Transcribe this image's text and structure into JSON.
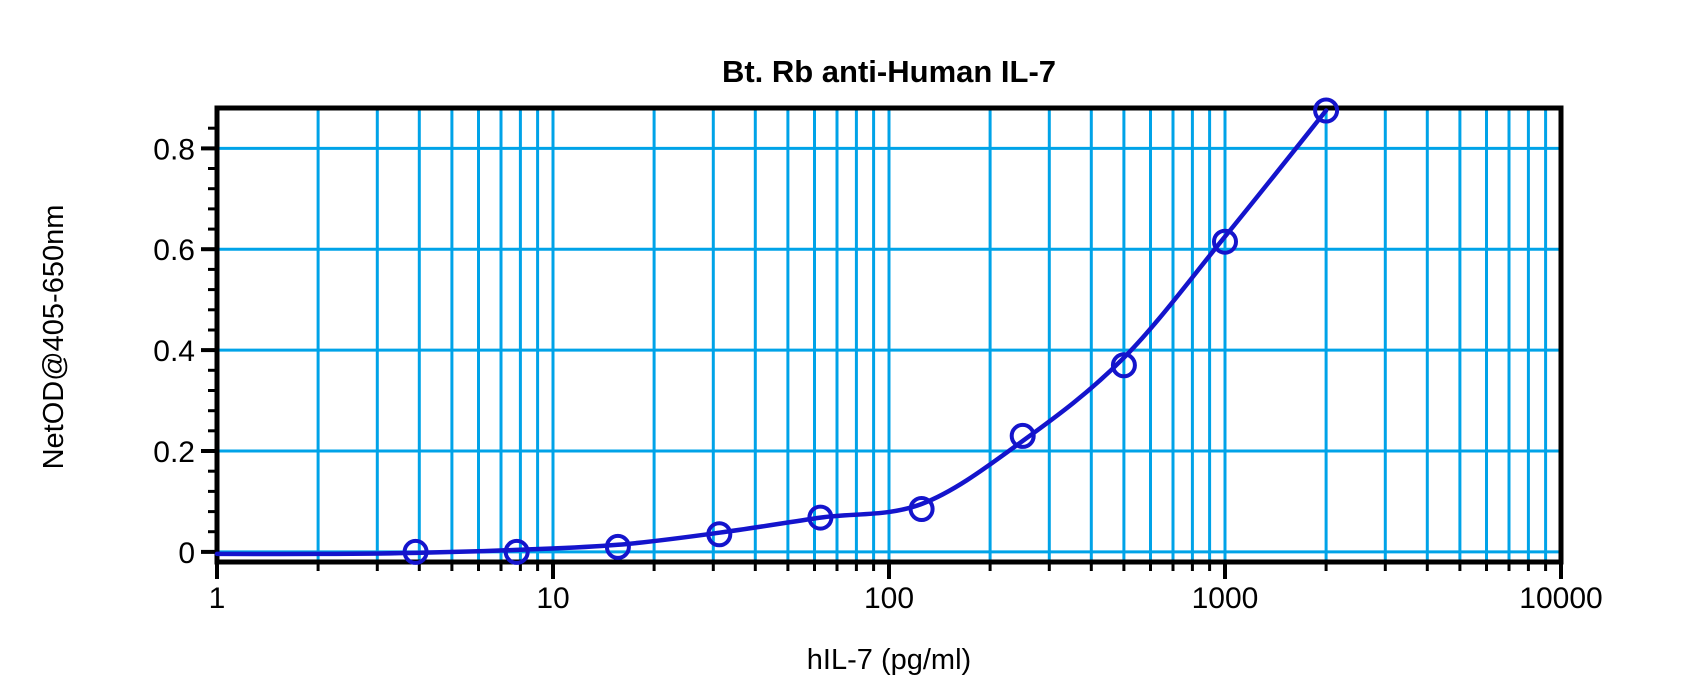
{
  "chart_data": {
    "type": "scatter",
    "title": "Bt. Rb anti-Human IL-7",
    "xlabel": "hIL-7 (pg/ml)",
    "ylabel": "NetOD@405-650nm",
    "x_scale": "log",
    "xlim": [
      1,
      10000
    ],
    "ylim": [
      -0.02,
      0.88
    ],
    "x_ticks": [
      1,
      10,
      100,
      1000,
      10000
    ],
    "x_tick_labels": [
      "1",
      "10",
      "100",
      "1000",
      "10000"
    ],
    "y_ticks": [
      0,
      0.2,
      0.4,
      0.6,
      0.8
    ],
    "y_tick_labels": [
      "0",
      "0.2",
      "0.4",
      "0.6",
      "0.8"
    ],
    "y_minor_tick_step": 0.04,
    "grid": true,
    "grid_color": "#00A3E8",
    "frame_color": "#000000",
    "legend": "none",
    "series": [
      {
        "name": "standard-points",
        "marker": "open-circle",
        "color": "#1414CC",
        "x": [
          3.9,
          7.8,
          15.6,
          31.25,
          62.5,
          125,
          250,
          500,
          1000,
          2000
        ],
        "y": [
          0.0,
          0.0,
          0.01,
          0.035,
          0.068,
          0.085,
          0.23,
          0.37,
          0.615,
          0.875
        ]
      }
    ],
    "fit_curve": {
      "name": "standard-fit-curve",
      "color": "#1414CC",
      "x": [
        1,
        2,
        3.9,
        7.8,
        15.6,
        31.25,
        62.5,
        125,
        250,
        500,
        1000,
        2000
      ],
      "y": [
        -0.004,
        -0.004,
        -0.002,
        0.004,
        0.014,
        0.038,
        0.068,
        0.095,
        0.22,
        0.385,
        0.625,
        0.875
      ]
    }
  }
}
